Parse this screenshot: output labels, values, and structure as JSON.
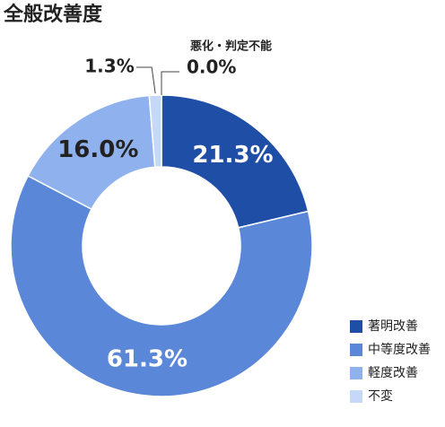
{
  "chart_data": {
    "type": "donut",
    "title": "全般改善度",
    "categories": [
      "著明改善",
      "中等度改善",
      "軽度改善",
      "不変"
    ],
    "values": [
      21.3,
      61.3,
      16.0,
      1.3
    ],
    "value_labels": [
      "21.3%",
      "61.3%",
      "16.0%",
      "1.3%"
    ],
    "colors": [
      "#1f4ea6",
      "#5b87d9",
      "#8fb2ee",
      "#c6d8f7"
    ],
    "annotation": {
      "label": "悪化・判定不能",
      "value": 0.0,
      "value_label": "0.0%"
    }
  }
}
